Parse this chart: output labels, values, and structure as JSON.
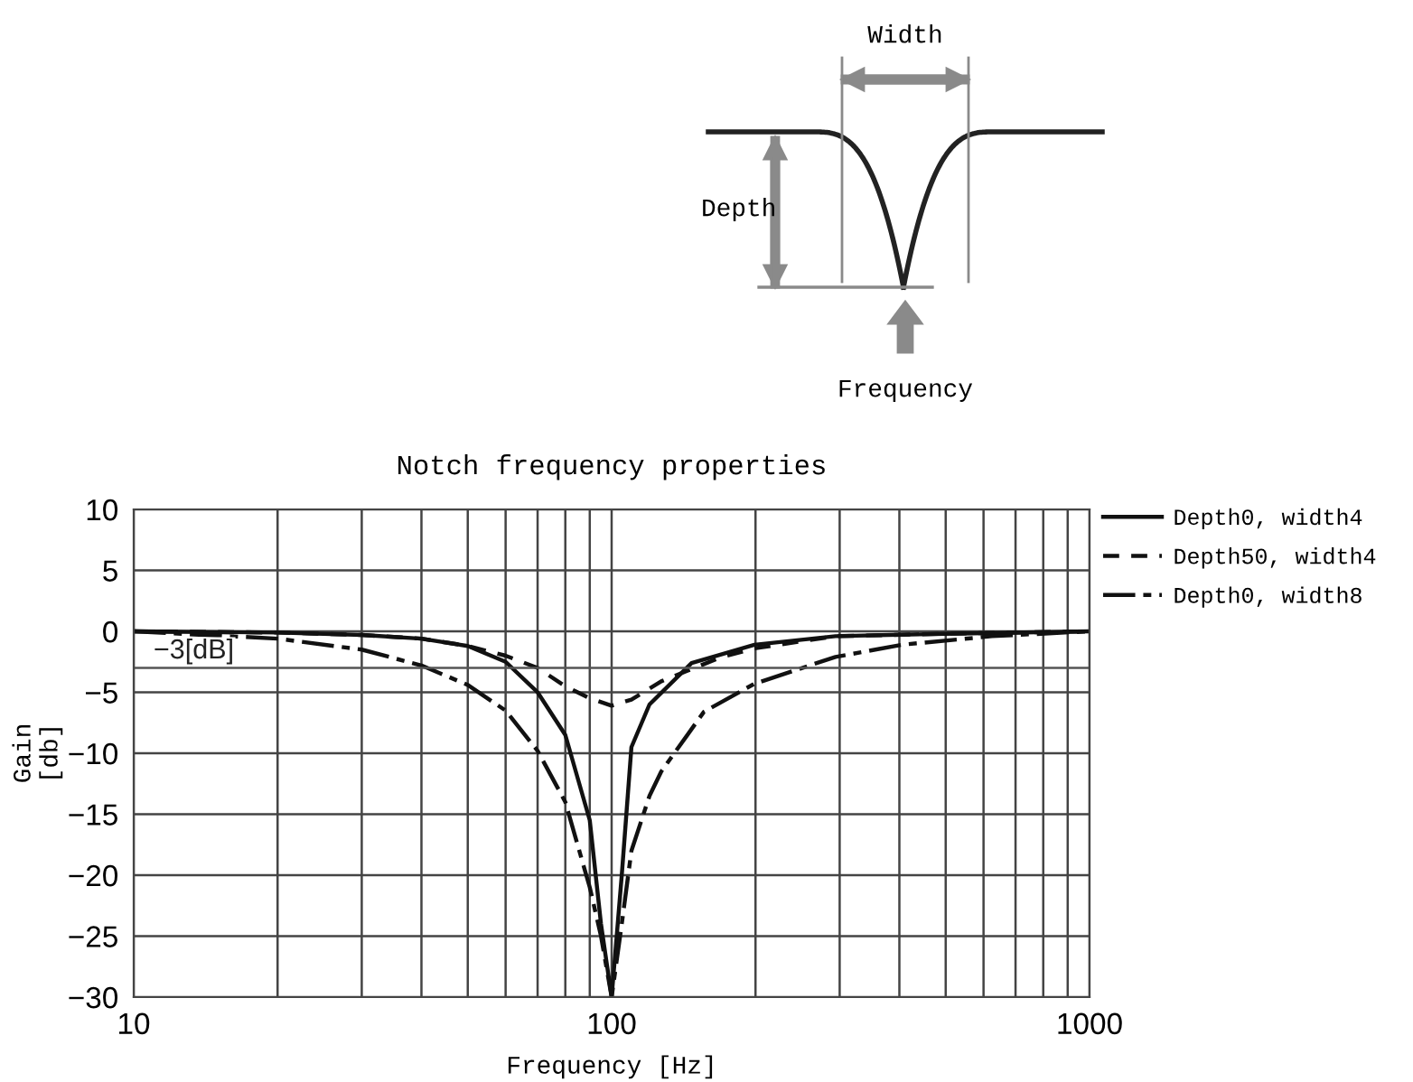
{
  "chart_data": {
    "type": "line",
    "title": "Notch frequency properties",
    "xlabel": "Frequency [Hz]",
    "ylabel": "Gain\n[db]",
    "log": "x",
    "xlim": [
      10,
      1000
    ],
    "xticks": [
      10,
      100,
      1000
    ],
    "ylim": [
      -30,
      10
    ],
    "yticks": [
      {
        "value": -30,
        "label": "−30"
      },
      {
        "value": -25,
        "label": "−25"
      },
      {
        "value": -20,
        "label": "−20"
      },
      {
        "value": -15,
        "label": "−15"
      },
      {
        "value": -10,
        "label": "−10"
      },
      {
        "value": -5,
        "label": "−5"
      },
      0,
      5,
      10
    ],
    "grid": true,
    "legend": "top right",
    "ref_lines": [
      {
        "axis": "y",
        "value": -3,
        "label": "−3[dB]",
        "color": "#555555"
      }
    ],
    "annotations": [
      "Width",
      "Depth",
      "Frequency"
    ],
    "series": [
      {
        "name": "Depth0, width4",
        "color": "#111111",
        "line_style": "solid",
        "x": [
          10,
          20,
          30,
          40,
          50,
          60,
          70,
          80,
          90,
          95,
          100,
          105,
          110,
          120,
          147,
          199,
          294,
          500,
          1000
        ],
        "values": [
          0,
          -0.1,
          -0.3,
          -0.6,
          -1.2,
          -2.5,
          -5,
          -8.5,
          -15.5,
          -24,
          -30,
          -20,
          -9.5,
          -6,
          -2.6,
          -1.1,
          -0.4,
          -0.2,
          0
        ]
      },
      {
        "name": "Depth50, width4",
        "color": "#111111",
        "line_style": "dashed",
        "x": [
          10,
          20,
          30,
          40,
          50,
          60,
          70,
          80,
          90,
          100,
          110,
          127,
          170,
          199,
          294,
          500,
          1000
        ],
        "values": [
          0,
          -0.1,
          -0.3,
          -0.6,
          -1.2,
          -2,
          -3,
          -4.5,
          -5.5,
          -6.1,
          -5.6,
          -4.1,
          -2.1,
          -1.4,
          -0.4,
          -0.2,
          0
        ]
      },
      {
        "name": "Depth0, width8",
        "color": "#111111",
        "line_style": "dashdot",
        "x": [
          10,
          20,
          30,
          40,
          50,
          60,
          70,
          80,
          90,
          95,
          100,
          105,
          110,
          120,
          127,
          156,
          199,
          294,
          405,
          625,
          1000
        ],
        "values": [
          0,
          -0.6,
          -1.5,
          -2.8,
          -4.4,
          -6.5,
          -9.8,
          -14,
          -21,
          -25,
          -30,
          -24,
          -18,
          -13.5,
          -11.5,
          -6.6,
          -4.3,
          -2.1,
          -1.1,
          -0.4,
          0
        ]
      }
    ]
  }
}
